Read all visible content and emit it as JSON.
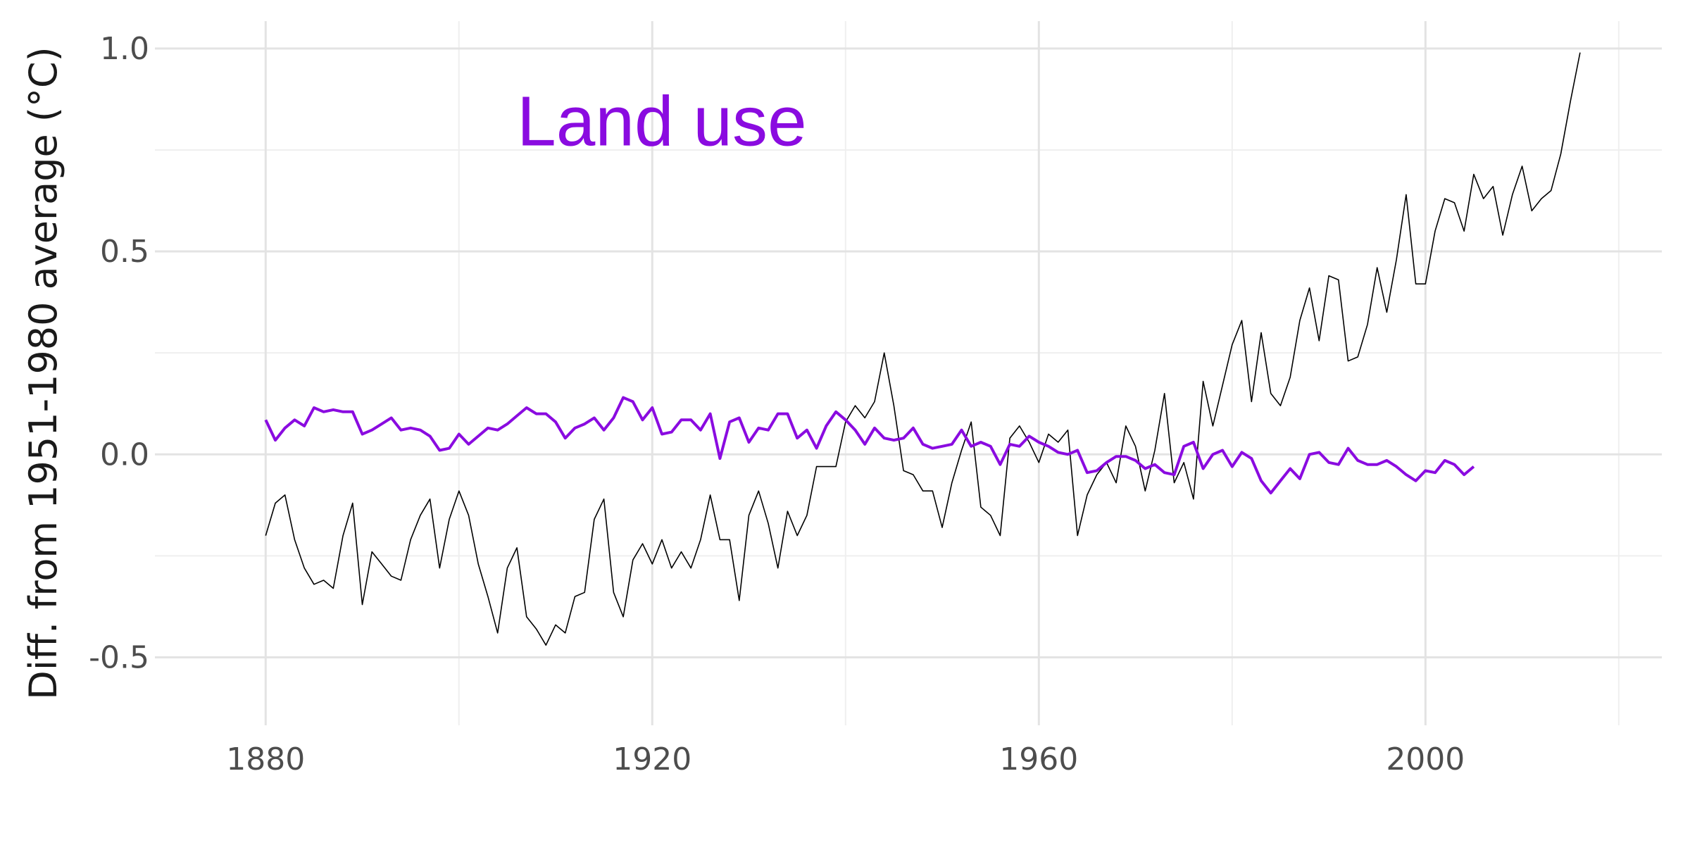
{
  "chart_data": {
    "type": "line",
    "title": "",
    "xlabel": "",
    "ylabel": "Diff. from 1951-1980 average (°C)",
    "xlim": [
      1870,
      2023
    ],
    "ylim": [
      -0.65,
      1.05
    ],
    "x_ticks": [
      1880,
      1920,
      1960,
      2000
    ],
    "x_tick_labels": [
      "1880",
      "1920",
      "1960",
      "2000"
    ],
    "y_ticks": [
      -0.5,
      0.0,
      0.5,
      1.0
    ],
    "y_tick_labels": [
      "-0.5",
      "0.0",
      "0.5",
      "1.0"
    ],
    "grid": true,
    "annotations": [
      {
        "text": "Land use",
        "x": 1906,
        "y": 0.82,
        "color": "#8a0be0"
      }
    ],
    "series": [
      {
        "color": "#000000",
        "x_start": 1880,
        "x_step": 1,
        "values": [
          -0.2,
          -0.12,
          -0.1,
          -0.21,
          -0.28,
          -0.32,
          -0.31,
          -0.33,
          -0.2,
          -0.12,
          -0.37,
          -0.24,
          -0.27,
          -0.3,
          -0.31,
          -0.21,
          -0.15,
          -0.11,
          -0.28,
          -0.16,
          -0.09,
          -0.15,
          -0.27,
          -0.35,
          -0.44,
          -0.28,
          -0.23,
          -0.4,
          -0.43,
          -0.47,
          -0.42,
          -0.44,
          -0.35,
          -0.34,
          -0.16,
          -0.11,
          -0.34,
          -0.4,
          -0.26,
          -0.22,
          -0.27,
          -0.21,
          -0.28,
          -0.24,
          -0.28,
          -0.21,
          -0.1,
          -0.21,
          -0.21,
          -0.36,
          -0.15,
          -0.09,
          -0.17,
          -0.28,
          -0.14,
          -0.2,
          -0.15,
          -0.03,
          -0.03,
          -0.03,
          0.08,
          0.12,
          0.09,
          0.13,
          0.25,
          0.12,
          -0.04,
          -0.05,
          -0.09,
          -0.09,
          -0.18,
          -0.07,
          0.01,
          0.08,
          -0.13,
          -0.15,
          -0.2,
          0.04,
          0.07,
          0.03,
          -0.02,
          0.05,
          0.03,
          0.06,
          -0.2,
          -0.1,
          -0.05,
          -0.02,
          -0.07,
          0.07,
          0.02,
          -0.09,
          0.01,
          0.15,
          -0.07,
          -0.02,
          -0.11,
          0.18,
          0.07,
          0.17,
          0.27,
          0.33,
          0.13,
          0.3,
          0.15,
          0.12,
          0.19,
          0.33,
          0.41,
          0.28,
          0.44,
          0.43,
          0.23,
          0.24,
          0.32,
          0.46,
          0.35,
          0.48,
          0.64,
          0.42,
          0.42,
          0.55,
          0.63,
          0.62,
          0.55,
          0.69,
          0.63,
          0.66,
          0.54,
          0.64,
          0.71,
          0.6,
          0.63,
          0.65,
          0.74,
          0.87,
          0.99
        ]
      },
      {
        "color": "#8a0be0",
        "x_start": 1880,
        "x_step": 1,
        "values": [
          0.085,
          0.035,
          0.065,
          0.085,
          0.07,
          0.115,
          0.105,
          0.11,
          0.105,
          0.105,
          0.05,
          0.06,
          0.075,
          0.09,
          0.06,
          0.065,
          0.06,
          0.045,
          0.01,
          0.015,
          0.05,
          0.025,
          0.045,
          0.065,
          0.06,
          0.075,
          0.095,
          0.115,
          0.1,
          0.1,
          0.08,
          0.04,
          0.065,
          0.075,
          0.09,
          0.06,
          0.09,
          0.14,
          0.13,
          0.085,
          0.115,
          0.05,
          0.055,
          0.085,
          0.085,
          0.06,
          0.1,
          -0.01,
          0.08,
          0.09,
          0.03,
          0.065,
          0.06,
          0.1,
          0.1,
          0.04,
          0.06,
          0.015,
          0.07,
          0.105,
          0.085,
          0.06,
          0.025,
          0.065,
          0.04,
          0.035,
          0.04,
          0.065,
          0.025,
          0.015,
          0.02,
          0.025,
          0.06,
          0.02,
          0.03,
          0.02,
          -0.025,
          0.025,
          0.02,
          0.045,
          0.03,
          0.02,
          0.005,
          0.0,
          0.01,
          -0.045,
          -0.04,
          -0.02,
          -0.005,
          -0.005,
          -0.015,
          -0.035,
          -0.025,
          -0.045,
          -0.05,
          0.02,
          0.03,
          -0.035,
          0.0,
          0.01,
          -0.03,
          0.005,
          -0.01,
          -0.065,
          -0.095,
          -0.065,
          -0.035,
          -0.06,
          0.0,
          0.005,
          -0.02,
          -0.025,
          0.015,
          -0.015,
          -0.025,
          -0.025,
          -0.015,
          -0.03,
          -0.05,
          -0.065,
          -0.04,
          -0.045,
          -0.015,
          -0.025,
          -0.05,
          -0.03
        ]
      }
    ]
  }
}
